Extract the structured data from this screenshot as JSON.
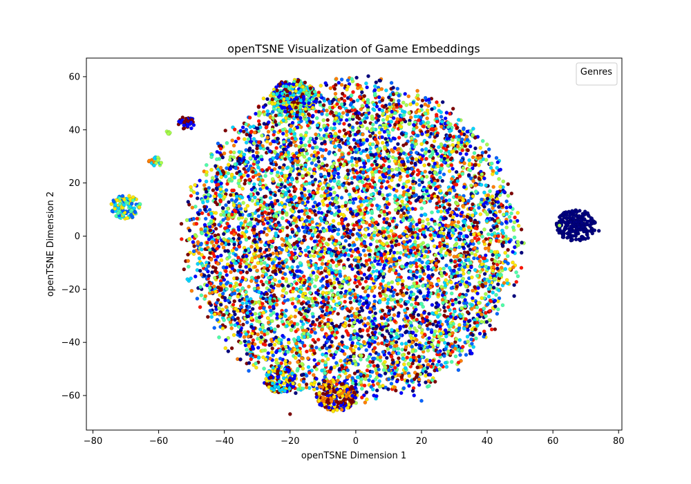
{
  "chart_data": {
    "type": "scatter",
    "title": "openTSNE Visualization of Game Embeddings",
    "xlabel": "openTSNE Dimension 1",
    "ylabel": "openTSNE Dimension 2",
    "xlim": [
      -82,
      81
    ],
    "ylim": [
      -73,
      67
    ],
    "xticks": [
      -80,
      -60,
      -40,
      -20,
      0,
      20,
      40,
      60,
      80
    ],
    "yticks": [
      -60,
      -40,
      -20,
      0,
      20,
      40,
      60
    ],
    "grid": false,
    "legend": {
      "title": "Genres",
      "position": "top-right",
      "entries": []
    },
    "colormap": [
      "#00007f",
      "#0000ff",
      "#0063ff",
      "#00d4ff",
      "#4effa9",
      "#a9ff4e",
      "#ffe600",
      "#ff7f00",
      "#ff1400",
      "#7f0000"
    ],
    "main_cluster": {
      "center": [
        -1,
        -2
      ],
      "radius_x": 52,
      "radius_y": 62
    },
    "sub_clusters": [
      {
        "center": [
          -70,
          11
        ],
        "radius": 4.5,
        "colors": [
          "#ffe600",
          "#4effa9",
          "#00d4ff",
          "#0063ff"
        ]
      },
      {
        "center": [
          -61,
          28
        ],
        "radius": 2,
        "colors": [
          "#ff7f00",
          "#a9ff4e",
          "#00d4ff"
        ]
      },
      {
        "center": [
          -51.5,
          42.5
        ],
        "radius": 2.5,
        "colors": [
          "#0000ff",
          "#7f0000"
        ]
      },
      {
        "center": [
          -57,
          39
        ],
        "radius": 0.8,
        "colors": [
          "#a9ff4e"
        ]
      },
      {
        "center": [
          67,
          4
        ],
        "radius": 6,
        "colors": [
          "#00007f"
        ]
      },
      {
        "center": [
          -19,
          52
        ],
        "radius": 7,
        "colors": [
          "#0000ff",
          "#ffe600",
          "#4effa9",
          "#00d4ff",
          "#7f0000"
        ]
      },
      {
        "center": [
          -23,
          -54
        ],
        "radius": 5,
        "colors": [
          "#0000ff",
          "#00d4ff",
          "#ffe600",
          "#7f0000"
        ]
      },
      {
        "center": [
          -6,
          -60
        ],
        "radius": 6,
        "colors": [
          "#ffe600",
          "#0000ff",
          "#ff7f00",
          "#7f0000"
        ]
      }
    ],
    "outliers": [
      {
        "x": -20,
        "y": -67,
        "color": "#7f0000"
      },
      {
        "x": 74,
        "y": 2,
        "color": "#00007f"
      },
      {
        "x": 62,
        "y": 4,
        "color": "#a9ff4e"
      },
      {
        "x": 20,
        "y": -62,
        "color": "#0063ff"
      }
    ]
  }
}
